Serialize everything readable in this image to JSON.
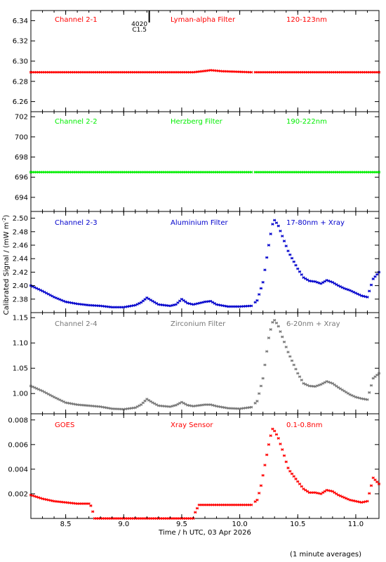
{
  "x_axis": {
    "label": "Time / h UTC, 03 Apr 2026",
    "ticks": [
      "8.5",
      "9.0",
      "9.5",
      "10.0",
      "10.5",
      "11.0"
    ],
    "tick_values": [
      8.5,
      9.0,
      9.5,
      10.0,
      10.5,
      11.0
    ],
    "range": [
      8.2,
      11.2
    ]
  },
  "y_axis_label": "Calibrated Signal / (mW m",
  "y_axis_label_sup": "-2",
  "y_axis_label_close": ")",
  "footnote": "(1 minute averages)",
  "flare_marker": {
    "time": 9.22,
    "line1": "4020",
    "line2": "C1.5"
  },
  "chart_data": [
    {
      "type": "scatter",
      "channel": "Channel 2-1",
      "filter": "Lyman-alpha Filter",
      "band": "120-123nm",
      "color": "#ff0000",
      "ylim": [
        6.25,
        6.35
      ],
      "y_ticks": [
        "6.26",
        "6.28",
        "6.30",
        "6.32",
        "6.34"
      ],
      "y_tick_values": [
        6.26,
        6.28,
        6.3,
        6.32,
        6.34
      ],
      "x": [
        8.2,
        9.0,
        9.5,
        9.6,
        9.68,
        9.75,
        9.85,
        10.1,
        10.5,
        11.2
      ],
      "y": [
        6.289,
        6.289,
        6.289,
        6.289,
        6.29,
        6.291,
        6.29,
        6.289,
        6.289,
        6.289
      ],
      "gap": [
        10.11,
        10.13
      ]
    },
    {
      "type": "scatter",
      "channel": "Channel 2-2",
      "filter": "Herzberg Filter",
      "band": "190-222nm",
      "color": "#00ee00",
      "ylim": [
        692.6,
        702.5
      ],
      "y_ticks": [
        "694",
        "696",
        "698",
        "700",
        "702"
      ],
      "y_tick_values": [
        694,
        696,
        698,
        700,
        702
      ],
      "x": [
        8.2,
        9.0,
        9.5,
        10.1,
        10.5,
        11.2
      ],
      "y": [
        696.5,
        696.5,
        696.5,
        696.5,
        696.5,
        696.5
      ],
      "gap": [
        10.11,
        10.13
      ]
    },
    {
      "type": "scatter",
      "channel": "Channel 2-3",
      "filter": "Aluminium Filter",
      "band": "17-80nm + Xray",
      "color": "#0000cc",
      "ylim": [
        2.36,
        2.51
      ],
      "y_ticks": [
        "2.38",
        "2.40",
        "2.42",
        "2.44",
        "2.46",
        "2.48",
        "2.50"
      ],
      "y_tick_values": [
        2.38,
        2.4,
        2.42,
        2.44,
        2.46,
        2.48,
        2.5
      ],
      "x": [
        8.2,
        8.3,
        8.4,
        8.5,
        8.6,
        8.7,
        8.8,
        8.9,
        9.0,
        9.1,
        9.15,
        9.2,
        9.25,
        9.3,
        9.4,
        9.45,
        9.5,
        9.55,
        9.6,
        9.7,
        9.75,
        9.8,
        9.9,
        10.0,
        10.1,
        10.15,
        10.2,
        10.25,
        10.28,
        10.3,
        10.33,
        10.37,
        10.42,
        10.5,
        10.55,
        10.6,
        10.65,
        10.7,
        10.75,
        10.8,
        10.85,
        10.9,
        10.95,
        11.0,
        11.05,
        11.1,
        11.15,
        11.2
      ],
      "y": [
        2.4,
        2.392,
        2.383,
        2.376,
        2.373,
        2.371,
        2.37,
        2.368,
        2.368,
        2.371,
        2.375,
        2.382,
        2.377,
        2.372,
        2.37,
        2.372,
        2.38,
        2.374,
        2.372,
        2.376,
        2.377,
        2.372,
        2.369,
        2.369,
        2.37,
        2.378,
        2.405,
        2.46,
        2.49,
        2.497,
        2.49,
        2.472,
        2.45,
        2.425,
        2.412,
        2.407,
        2.406,
        2.403,
        2.408,
        2.405,
        2.4,
        2.396,
        2.393,
        2.389,
        2.385,
        2.383,
        2.41,
        2.42
      ],
      "gap": [
        10.11,
        10.13
      ]
    },
    {
      "type": "scatter",
      "channel": "Channel 2-4",
      "filter": "Zirconium Filter",
      "band": "6-20nm + Xray",
      "color": "#777777",
      "ylim": [
        0.96,
        1.16
      ],
      "y_ticks": [
        "1.00",
        "1.05",
        "1.10",
        "1.15"
      ],
      "y_tick_values": [
        1.0,
        1.05,
        1.1,
        1.15
      ],
      "x": [
        8.2,
        8.3,
        8.4,
        8.5,
        8.6,
        8.7,
        8.8,
        8.9,
        9.0,
        9.1,
        9.15,
        9.2,
        9.25,
        9.3,
        9.4,
        9.45,
        9.5,
        9.55,
        9.6,
        9.7,
        9.75,
        9.8,
        9.9,
        10.0,
        10.1,
        10.15,
        10.2,
        10.25,
        10.28,
        10.3,
        10.33,
        10.37,
        10.42,
        10.5,
        10.55,
        10.6,
        10.65,
        10.7,
        10.75,
        10.8,
        10.85,
        10.9,
        10.95,
        11.0,
        11.05,
        11.1,
        11.15,
        11.2
      ],
      "y": [
        1.015,
        1.005,
        0.993,
        0.982,
        0.978,
        0.976,
        0.974,
        0.97,
        0.969,
        0.972,
        0.978,
        0.989,
        0.982,
        0.976,
        0.974,
        0.977,
        0.983,
        0.977,
        0.975,
        0.978,
        0.978,
        0.975,
        0.971,
        0.97,
        0.973,
        0.985,
        1.03,
        1.11,
        1.14,
        1.145,
        1.135,
        1.11,
        1.08,
        1.04,
        1.02,
        1.015,
        1.014,
        1.018,
        1.024,
        1.02,
        1.012,
        1.005,
        0.998,
        0.993,
        0.99,
        0.988,
        1.03,
        1.04
      ],
      "gap": [
        10.11,
        10.13
      ]
    },
    {
      "type": "scatter",
      "channel": "GOES",
      "filter": "Xray Sensor",
      "band": "0.1-0.8nm",
      "color": "#ff0000",
      "ylim": [
        0.0,
        0.0085
      ],
      "y_ticks": [
        "0.002",
        "0.004",
        "0.006",
        "0.008"
      ],
      "y_tick_values": [
        0.002,
        0.004,
        0.006,
        0.008
      ],
      "x": [
        8.2,
        8.3,
        8.4,
        8.5,
        8.6,
        8.7,
        8.72,
        8.75,
        8.8,
        9.0,
        9.5,
        9.6,
        9.62,
        9.65,
        9.8,
        10.0,
        10.1,
        10.15,
        10.18,
        10.22,
        10.25,
        10.28,
        10.3,
        10.33,
        10.37,
        10.42,
        10.5,
        10.55,
        10.6,
        10.65,
        10.7,
        10.75,
        10.8,
        10.85,
        10.9,
        10.95,
        11.0,
        11.05,
        11.1,
        11.15,
        11.2
      ],
      "y": [
        0.0019,
        0.0016,
        0.0014,
        0.0013,
        0.0012,
        0.0012,
        0.001,
        0.0,
        0.0,
        0.0,
        0.0,
        0.0,
        0.0006,
        0.0011,
        0.0011,
        0.0011,
        0.0011,
        0.0015,
        0.0025,
        0.0045,
        0.006,
        0.0073,
        0.0071,
        0.0066,
        0.0055,
        0.004,
        0.003,
        0.0024,
        0.0021,
        0.0021,
        0.002,
        0.0023,
        0.0022,
        0.0019,
        0.0017,
        0.0015,
        0.0014,
        0.0013,
        0.0014,
        0.0033,
        0.0028
      ],
      "gap": [
        10.11,
        10.13
      ]
    }
  ]
}
